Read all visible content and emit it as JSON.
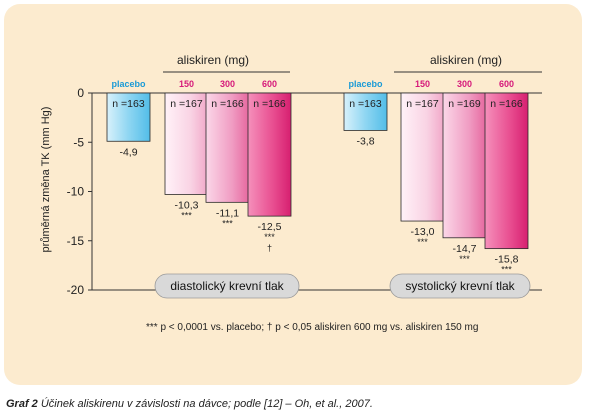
{
  "chart_data": {
    "type": "bar",
    "ylabel": "průměrná změna TK (mm Hg)",
    "ylim": [
      -20,
      0
    ],
    "yticks": [
      0,
      -5,
      -10,
      -15,
      -20
    ],
    "ytick_labels": [
      "0",
      "-5",
      "-10",
      "-15",
      "-20"
    ],
    "groups": [
      {
        "header": "aliskiren (mg)",
        "label": "diastolický krevní tlak",
        "bars": [
          {
            "category": "placebo",
            "value": -4.9,
            "n": "n =163",
            "value_label": "-4,9",
            "sig": ""
          },
          {
            "category": "150",
            "value": -10.3,
            "n": "n =167",
            "value_label": "-10,3",
            "sig": "***"
          },
          {
            "category": "300",
            "value": -11.1,
            "n": "n =166",
            "value_label": "-11,1",
            "sig": "***"
          },
          {
            "category": "600",
            "value": -12.5,
            "n": "n =166",
            "value_label": "-12,5",
            "sig": "***\n†"
          }
        ]
      },
      {
        "header": "aliskiren (mg)",
        "label": "systolický krevní tlak",
        "bars": [
          {
            "category": "placebo",
            "value": -3.8,
            "n": "n =163",
            "value_label": "-3,8",
            "sig": ""
          },
          {
            "category": "150",
            "value": -13.0,
            "n": "n =167",
            "value_label": "-13,0",
            "sig": "***"
          },
          {
            "category": "300",
            "value": -14.7,
            "n": "n =169",
            "value_label": "-14,7",
            "sig": "***"
          },
          {
            "category": "600",
            "value": -15.8,
            "n": "n =166",
            "value_label": "-15,8",
            "sig": "***"
          }
        ]
      }
    ],
    "footnote": "*** p < 0,0001 vs. placebo; † p < 0,05 aliskiren 600 mg vs. aliskiren 150 mg",
    "colors": {
      "placebo": "#7fd0ef",
      "150": "#f7cfe0",
      "300": "#ef95bd",
      "600": "#e5468a",
      "placebo_label": "#1a9ad6",
      "dose_label": "#d6197a"
    }
  },
  "caption": {
    "label": "Graf 2",
    "text": "Účinek aliskirenu v závislosti na dávce; podle [12] – Oh, et al., 2007."
  }
}
